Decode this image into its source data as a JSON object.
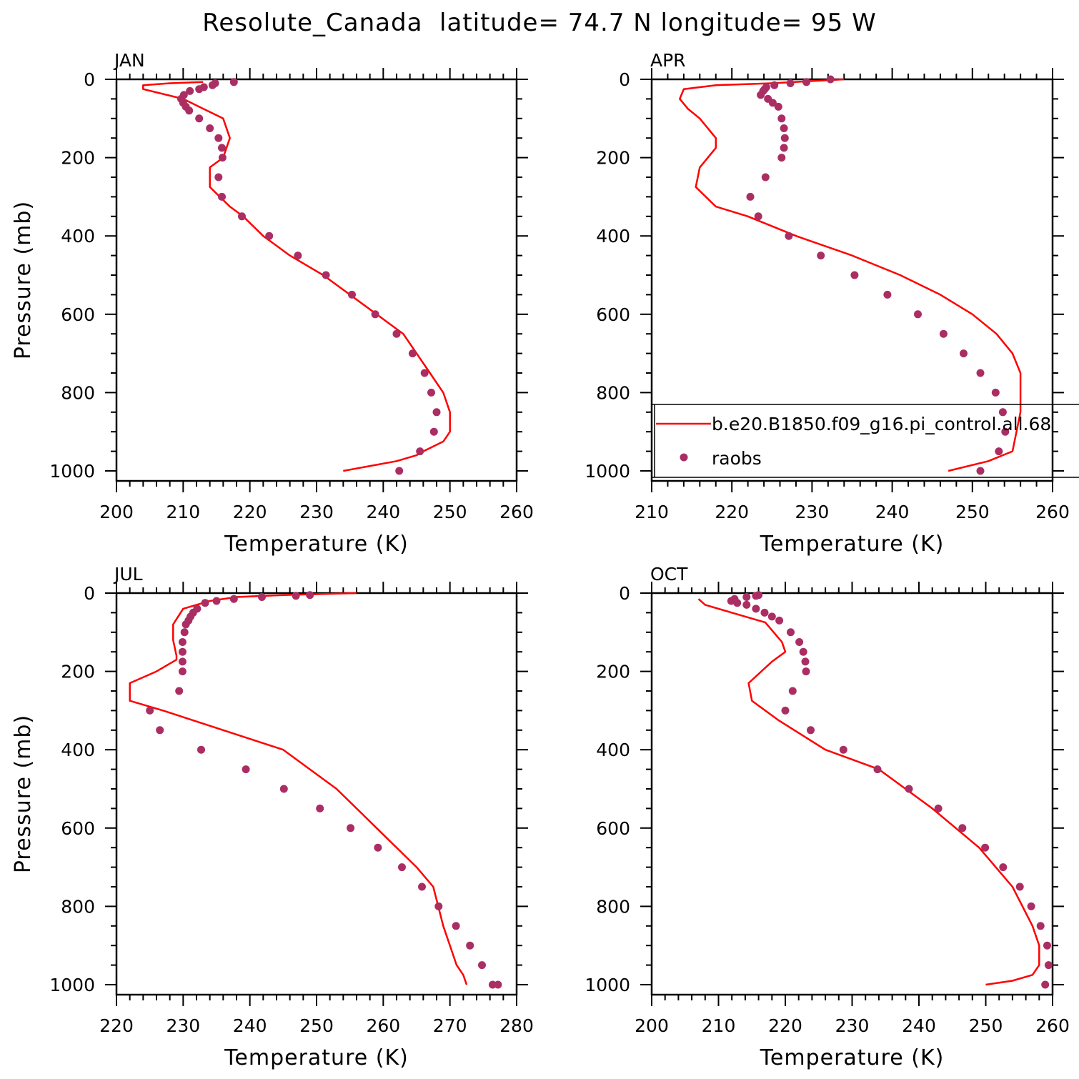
{
  "title": "Resolute_Canada  latitude= 74.7 N longitude= 95 W",
  "colors": {
    "model_line": "#ff0000",
    "obs_marker": "#aa2e63",
    "axes": "#000000"
  },
  "chart_data": [
    {
      "type": "line",
      "panel_label": "JAN",
      "xlabel": "Temperature (K)",
      "ylabel": "Pressure (mb)",
      "xlim": [
        200,
        260
      ],
      "ylim": [
        1025,
        0
      ],
      "y_reversed": true,
      "x_ticks": [
        "200",
        "210",
        "220",
        "230",
        "240",
        "250",
        "260"
      ],
      "y_ticks": [
        "0",
        "200",
        "400",
        "600",
        "800",
        "1000"
      ],
      "series": [
        {
          "name": "b.e20.B1850.f09_g16.pi_control.all.68",
          "kind": "line",
          "x": [
            213,
            208,
            204,
            204,
            210,
            213,
            216,
            217,
            216,
            214,
            214,
            217,
            219,
            222,
            226,
            231,
            235,
            239,
            243,
            245,
            247,
            249,
            250,
            250,
            249,
            246,
            245,
            242,
            234
          ],
          "y": [
            7,
            10,
            15,
            25,
            50,
            75,
            100,
            150,
            200,
            225,
            275,
            325,
            350,
            400,
            450,
            500,
            550,
            600,
            650,
            700,
            750,
            800,
            850,
            900,
            925,
            950,
            960,
            975,
            1000
          ]
        },
        {
          "name": "raobs",
          "kind": "scatter",
          "x": [
            217.6,
            214.8,
            214.4,
            213.1,
            212.4,
            211.0,
            210.1,
            209.7,
            210.0,
            210.4,
            210.9,
            212.4,
            214.0,
            215.3,
            215.8,
            215.9,
            215.3,
            215.8,
            218.8,
            222.9,
            227.2,
            231.4,
            235.3,
            238.8,
            242.0,
            244.4,
            246.2,
            247.2,
            248.0,
            247.6,
            245.5,
            242.4
          ],
          "y": [
            7,
            10,
            15,
            20,
            25,
            30,
            40,
            50,
            60,
            70,
            80,
            100,
            125,
            150,
            175,
            200,
            250,
            300,
            350,
            400,
            450,
            500,
            550,
            600,
            650,
            700,
            750,
            800,
            850,
            900,
            950,
            1000
          ]
        }
      ]
    },
    {
      "type": "line",
      "panel_label": "APR",
      "xlabel": "Temperature (K)",
      "ylabel": "",
      "xlim": [
        210,
        260
      ],
      "ylim": [
        1025,
        0
      ],
      "y_reversed": true,
      "x_ticks": [
        "210",
        "220",
        "230",
        "240",
        "250",
        "260"
      ],
      "y_ticks": [
        "0",
        "200",
        "400",
        "600",
        "800",
        "1000"
      ],
      "series": [
        {
          "name": "b.e20.B1850.f09_g16.pi_control.all.68",
          "kind": "line",
          "x": [
            234,
            225,
            218,
            214,
            213.5,
            214.5,
            216,
            218,
            218,
            216,
            215.5,
            218,
            222,
            228,
            235,
            241,
            246,
            250,
            253,
            255,
            256,
            256,
            255,
            252,
            247
          ],
          "y": [
            0,
            10,
            15,
            25,
            50,
            75,
            100,
            150,
            175,
            225,
            275,
            325,
            350,
            400,
            450,
            500,
            550,
            600,
            650,
            700,
            750,
            850,
            950,
            975,
            1000
          ]
        },
        {
          "name": "raobs",
          "kind": "scatter",
          "x": [
            232.3,
            229.3,
            227.3,
            225.3,
            224.3,
            224.1,
            223.9,
            223.6,
            224.5,
            225.1,
            225.8,
            226.2,
            226.5,
            226.6,
            226.5,
            226.2,
            224.2,
            222.3,
            223.3,
            227.1,
            231.1,
            235.3,
            239.4,
            243.2,
            246.4,
            248.9,
            251.0,
            252.9,
            253.8,
            254.1,
            253.3,
            251.0
          ],
          "y": [
            0,
            7,
            10,
            15,
            20,
            25,
            30,
            40,
            50,
            60,
            70,
            100,
            125,
            150,
            175,
            200,
            250,
            300,
            350,
            400,
            450,
            500,
            550,
            600,
            650,
            700,
            750,
            800,
            850,
            900,
            950,
            1000
          ]
        }
      ],
      "legend": {
        "entries": [
          "b.e20.B1850.f09_g16.pi_control.all.68",
          "raobs"
        ],
        "placement": "bottom"
      }
    },
    {
      "type": "line",
      "panel_label": "JUL",
      "xlabel": "Temperature (K)",
      "ylabel": "Pressure (mb)",
      "xlim": [
        220,
        280
      ],
      "ylim": [
        1025,
        0
      ],
      "y_reversed": true,
      "x_ticks": [
        "220",
        "230",
        "240",
        "250",
        "260",
        "270",
        "280"
      ],
      "y_ticks": [
        "0",
        "200",
        "400",
        "600",
        "800",
        "1000"
      ],
      "series": [
        {
          "name": "b.e20.B1850.f09_g16.pi_control.all.68",
          "kind": "line",
          "x": [
            256,
            245,
            238,
            234,
            230,
            228.5,
            228.5,
            229,
            229,
            226,
            222,
            222,
            227,
            236,
            245,
            253,
            259,
            265,
            267.5,
            269,
            271,
            272,
            272.5
          ],
          "y": [
            0,
            5,
            10,
            20,
            40,
            80,
            120,
            160,
            170,
            200,
            230,
            275,
            300,
            350,
            400,
            500,
            600,
            700,
            750,
            850,
            950,
            975,
            1000
          ]
        },
        {
          "name": "raobs",
          "kind": "scatter",
          "x": [
            249.0,
            246.9,
            241.8,
            237.6,
            235.0,
            233.3,
            232.1,
            231.5,
            231.1,
            230.8,
            230.4,
            230.2,
            229.9,
            229.9,
            229.9,
            229.9,
            229.4,
            225.0,
            226.5,
            232.7,
            239.4,
            245.1,
            250.5,
            255.1,
            259.2,
            262.8,
            265.8,
            268.3,
            270.9,
            273.0,
            274.8,
            276.4,
            277.2
          ],
          "y": [
            5,
            7,
            10,
            15,
            20,
            25,
            40,
            50,
            60,
            70,
            80,
            100,
            125,
            150,
            175,
            200,
            250,
            300,
            350,
            400,
            450,
            500,
            550,
            600,
            650,
            700,
            750,
            800,
            850,
            900,
            950,
            1000,
            1000
          ]
        }
      ]
    },
    {
      "type": "line",
      "panel_label": "OCT",
      "xlabel": "Temperature (K)",
      "ylabel": "",
      "xlim": [
        200,
        260
      ],
      "ylim": [
        1025,
        0
      ],
      "y_reversed": true,
      "x_ticks": [
        "200",
        "210",
        "220",
        "230",
        "240",
        "250",
        "260"
      ],
      "y_ticks": [
        "0",
        "200",
        "400",
        "600",
        "800",
        "1000"
      ],
      "series": [
        {
          "name": "b.e20.B1850.f09_g16.pi_control.all.68",
          "kind": "line",
          "x": [
            207,
            208,
            212,
            217,
            219.5,
            220,
            218,
            214.5,
            215,
            219,
            226,
            234,
            242,
            249,
            254,
            257,
            258,
            258,
            257,
            254,
            250
          ],
          "y": [
            15,
            30,
            50,
            75,
            125,
            150,
            175,
            230,
            275,
            325,
            400,
            450,
            550,
            650,
            750,
            850,
            900,
            950,
            975,
            990,
            1000
          ]
        },
        {
          "name": "raobs",
          "kind": "scatter",
          "x": [
            216.0,
            215.6,
            214.2,
            212.4,
            211.9,
            212.8,
            214.2,
            215.6,
            216.9,
            218.0,
            219.1,
            220.8,
            222.1,
            222.7,
            223.0,
            223.1,
            221.1,
            220.0,
            223.8,
            228.7,
            233.8,
            238.5,
            242.9,
            246.5,
            249.9,
            252.6,
            255.1,
            256.8,
            258.2,
            259.2,
            259.4,
            258.9
          ],
          "y": [
            5,
            7,
            10,
            15,
            20,
            25,
            30,
            40,
            50,
            60,
            70,
            100,
            125,
            150,
            175,
            200,
            250,
            300,
            350,
            400,
            450,
            500,
            550,
            600,
            650,
            700,
            750,
            800,
            850,
            900,
            950,
            1000
          ]
        }
      ]
    }
  ]
}
